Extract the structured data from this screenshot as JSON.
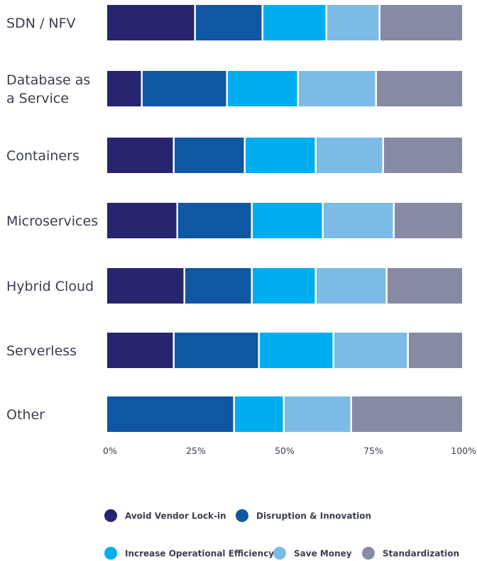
{
  "chart_data": {
    "type": "bar",
    "orientation": "horizontal",
    "stacked": true,
    "categories": [
      "SDN / NFV",
      "Database as a Service",
      "Containers",
      "Microservices",
      "Hybrid Cloud",
      "Serverless",
      "Other"
    ],
    "category_label_lines": [
      [
        "SDN / NFV"
      ],
      [
        "Database as",
        "a Service"
      ],
      [
        "Containers"
      ],
      [
        "Microservices"
      ],
      [
        "Hybrid Cloud"
      ],
      [
        "Serverless"
      ],
      [
        "Other"
      ]
    ],
    "series": [
      {
        "name": "Avoid Vendor Lock-in",
        "color": "#26256e",
        "values": [
          25,
          10,
          19,
          20,
          22,
          19,
          0
        ]
      },
      {
        "name": "Disruption & Innovation",
        "color": "#0f56a3",
        "values": [
          19,
          24,
          20,
          21,
          19,
          24,
          36
        ]
      },
      {
        "name": "Increase Operational Efficiency",
        "color": "#00aeef",
        "values": [
          18,
          20,
          20,
          20,
          18,
          21,
          14
        ]
      },
      {
        "name": "Save Money",
        "color": "#7bbbe6",
        "values": [
          15,
          22,
          19,
          20,
          20,
          21,
          19
        ]
      },
      {
        "name": "Standardization",
        "color": "#878aa3",
        "values": [
          23,
          24,
          22,
          19,
          21,
          15,
          31
        ]
      }
    ],
    "xlim": [
      0,
      100
    ],
    "x_ticks": [
      "0%",
      "25%",
      "50%",
      "75%",
      "100%"
    ],
    "x_tick_values": [
      0,
      25,
      50,
      75,
      100
    ],
    "grid": false,
    "legend_position": "bottom",
    "title": "",
    "xlabel": "",
    "ylabel": ""
  }
}
